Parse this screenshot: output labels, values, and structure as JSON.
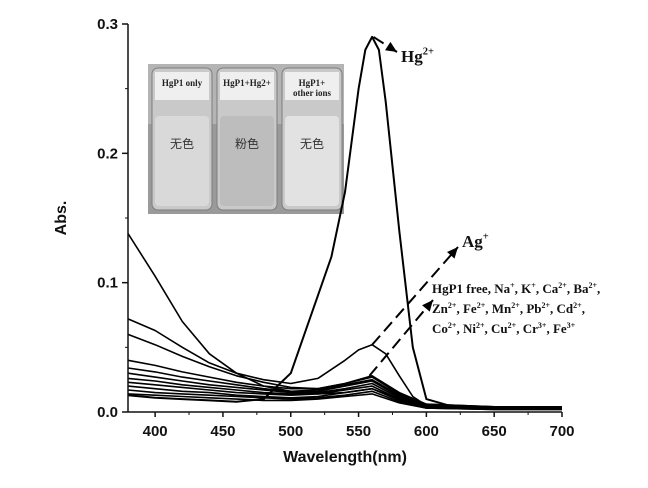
{
  "chart_data": {
    "type": "line",
    "xlabel": "Wavelength(nm)",
    "ylabel": "Abs.",
    "xlim": [
      380,
      700
    ],
    "ylim": [
      0,
      0.3
    ],
    "xticks": [
      "400",
      "450",
      "500",
      "550",
      "600",
      "650",
      "700"
    ],
    "yticks": [
      "0.0",
      "0.1",
      "0.2",
      "0.3"
    ],
    "grid": false,
    "series": [
      {
        "name": "Hg2+",
        "x": [
          380,
          400,
          420,
          440,
          460,
          480,
          500,
          510,
          520,
          530,
          540,
          550,
          555,
          560,
          565,
          570,
          580,
          590,
          600,
          620,
          650,
          700
        ],
        "y": [
          0.013,
          0.011,
          0.01,
          0.009,
          0.008,
          0.01,
          0.03,
          0.06,
          0.09,
          0.12,
          0.17,
          0.25,
          0.28,
          0.29,
          0.28,
          0.24,
          0.14,
          0.05,
          0.01,
          0.004,
          0.003,
          0.003
        ]
      },
      {
        "name": "Ag+",
        "x": [
          380,
          400,
          420,
          440,
          460,
          480,
          500,
          520,
          540,
          550,
          560,
          570,
          580,
          590,
          600,
          620,
          650,
          700
        ],
        "y": [
          0.072,
          0.063,
          0.05,
          0.038,
          0.03,
          0.025,
          0.022,
          0.026,
          0.04,
          0.048,
          0.052,
          0.045,
          0.028,
          0.012,
          0.005,
          0.004,
          0.004,
          0.004
        ]
      },
      {
        "x": [
          380,
          400,
          420,
          440,
          460,
          480,
          500,
          520,
          540,
          560,
          580,
          600,
          650,
          700
        ],
        "y": [
          0.138,
          0.105,
          0.07,
          0.045,
          0.03,
          0.02,
          0.016,
          0.014,
          0.015,
          0.018,
          0.01,
          0.004,
          0.003,
          0.003
        ]
      },
      {
        "x": [
          380,
          400,
          420,
          440,
          460,
          480,
          500,
          520,
          540,
          560,
          580,
          600,
          650,
          700
        ],
        "y": [
          0.06,
          0.052,
          0.043,
          0.035,
          0.028,
          0.023,
          0.019,
          0.018,
          0.022,
          0.028,
          0.015,
          0.006,
          0.004,
          0.004
        ]
      },
      {
        "x": [
          380,
          400,
          420,
          440,
          460,
          480,
          500,
          520,
          540,
          560,
          580,
          600,
          650,
          700
        ],
        "y": [
          0.04,
          0.036,
          0.031,
          0.027,
          0.023,
          0.02,
          0.018,
          0.018,
          0.022,
          0.027,
          0.014,
          0.006,
          0.004,
          0.004
        ]
      },
      {
        "x": [
          380,
          400,
          420,
          440,
          460,
          480,
          500,
          520,
          540,
          560,
          580,
          600,
          650,
          700
        ],
        "y": [
          0.034,
          0.031,
          0.027,
          0.024,
          0.021,
          0.018,
          0.016,
          0.017,
          0.021,
          0.025,
          0.013,
          0.005,
          0.004,
          0.004
        ]
      },
      {
        "x": [
          380,
          400,
          420,
          440,
          460,
          480,
          500,
          520,
          540,
          560,
          580,
          600,
          650,
          700
        ],
        "y": [
          0.03,
          0.027,
          0.024,
          0.021,
          0.019,
          0.017,
          0.015,
          0.016,
          0.02,
          0.024,
          0.012,
          0.005,
          0.003,
          0.003
        ]
      },
      {
        "x": [
          380,
          400,
          420,
          440,
          460,
          480,
          500,
          520,
          540,
          560,
          580,
          600,
          650,
          700
        ],
        "y": [
          0.026,
          0.024,
          0.021,
          0.019,
          0.017,
          0.015,
          0.014,
          0.015,
          0.018,
          0.022,
          0.011,
          0.005,
          0.003,
          0.003
        ]
      },
      {
        "x": [
          380,
          400,
          420,
          440,
          460,
          480,
          500,
          520,
          540,
          560,
          580,
          600,
          650,
          700
        ],
        "y": [
          0.023,
          0.021,
          0.019,
          0.017,
          0.015,
          0.014,
          0.013,
          0.014,
          0.017,
          0.02,
          0.01,
          0.004,
          0.003,
          0.003
        ]
      },
      {
        "x": [
          380,
          400,
          420,
          440,
          460,
          480,
          500,
          520,
          540,
          560,
          580,
          600,
          650,
          700
        ],
        "y": [
          0.02,
          0.018,
          0.016,
          0.015,
          0.013,
          0.012,
          0.011,
          0.012,
          0.015,
          0.018,
          0.009,
          0.004,
          0.003,
          0.003
        ]
      },
      {
        "x": [
          380,
          400,
          420,
          440,
          460,
          480,
          500,
          520,
          540,
          560,
          580,
          600,
          650,
          700
        ],
        "y": [
          0.017,
          0.015,
          0.014,
          0.013,
          0.012,
          0.011,
          0.01,
          0.011,
          0.013,
          0.016,
          0.008,
          0.003,
          0.002,
          0.002
        ]
      },
      {
        "x": [
          380,
          400,
          420,
          440,
          460,
          480,
          500,
          520,
          540,
          560,
          580,
          600,
          650,
          700
        ],
        "y": [
          0.014,
          0.013,
          0.012,
          0.011,
          0.01,
          0.009,
          0.009,
          0.01,
          0.012,
          0.014,
          0.007,
          0.003,
          0.002,
          0.002
        ]
      }
    ],
    "annotations": {
      "hg": {
        "base": "Hg",
        "sup": "2+"
      },
      "ag": {
        "base": "Ag",
        "sup": "+"
      },
      "others": [
        [
          {
            "t": "HgP1 free, Na"
          },
          {
            "t": "+",
            "sup": true
          },
          {
            "t": ", K"
          },
          {
            "t": "+",
            "sup": true
          },
          {
            "t": ", Ca"
          },
          {
            "t": "2+",
            "sup": true
          },
          {
            "t": ",  Ba"
          },
          {
            "t": "2+",
            "sup": true
          },
          {
            "t": ","
          }
        ],
        [
          {
            "t": "Zn"
          },
          {
            "t": "2+",
            "sup": true
          },
          {
            "t": ", Fe"
          },
          {
            "t": "2+",
            "sup": true
          },
          {
            "t": ", Mn"
          },
          {
            "t": "2+",
            "sup": true
          },
          {
            "t": ", Pb"
          },
          {
            "t": "2+",
            "sup": true
          },
          {
            "t": ", Cd"
          },
          {
            "t": "2+",
            "sup": true
          },
          {
            "t": ","
          }
        ],
        [
          {
            "t": "Co"
          },
          {
            "t": "2+",
            "sup": true
          },
          {
            "t": ", Ni"
          },
          {
            "t": "2+",
            "sup": true
          },
          {
            "t": ", Cu"
          },
          {
            "t": "2+",
            "sup": true
          },
          {
            "t": ", Cr"
          },
          {
            "t": "3+",
            "sup": true
          },
          {
            "t": ", Fe"
          },
          {
            "t": "3+",
            "sup": true
          }
        ]
      ]
    },
    "inset": {
      "vials": [
        {
          "label_lines": [
            "HgP1 only"
          ],
          "color_text": "无色",
          "liquid": "#d9d9d9"
        },
        {
          "label_lines": [
            "HgP1+Hg2+"
          ],
          "color_text": "粉色",
          "liquid": "#bdbdbd"
        },
        {
          "label_lines": [
            "HgP1+",
            "other ions"
          ],
          "color_text": "无色",
          "liquid": "#e2e2e2"
        }
      ]
    }
  }
}
